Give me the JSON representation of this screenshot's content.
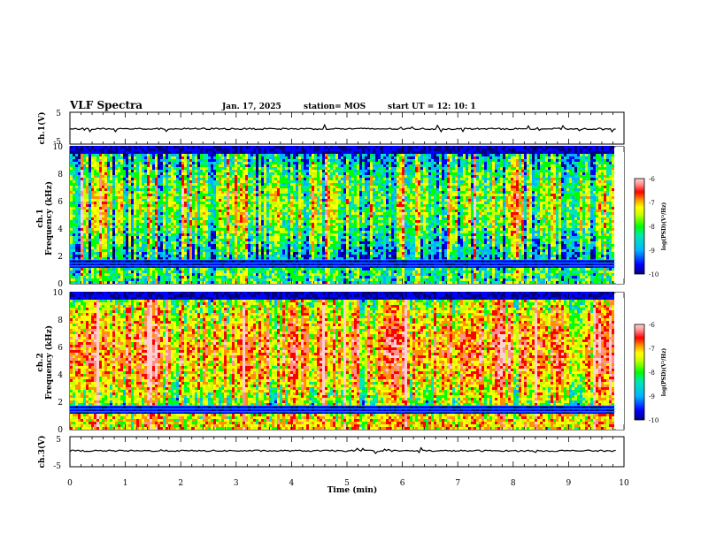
{
  "header": {
    "title": "VLF Spectra",
    "date": "Jan. 17, 2025",
    "station": "station= MOS",
    "start_ut": "start  UT =   12: 10: 1"
  },
  "chart_data": [
    {
      "type": "line",
      "name": "ch.1 waveform",
      "ylabel": "ch.1(V)",
      "ylim": [
        -5,
        5
      ],
      "yticks": [
        "5",
        "-5"
      ],
      "xlim": [
        0,
        10
      ],
      "trace_level": -0.2
    },
    {
      "type": "heatmap",
      "name": "ch.1 spectrogram",
      "ylabel": "ch.1\nFrequency (kHz)",
      "ylabel_lines": [
        "ch.1",
        "Frequency (kHz)"
      ],
      "yticks": [
        "0",
        "2",
        "4",
        "6",
        "8",
        "10"
      ],
      "ylim": [
        0,
        10
      ],
      "xlim": [
        0,
        9.85
      ],
      "colorbar": {
        "label": "log(PSD)(V²/Hz)",
        "range": [
          -10,
          -6
        ],
        "ticks": [
          "-6",
          "-7",
          "-8",
          "-9",
          "-10"
        ]
      },
      "colormap": [
        "#000080",
        "#0000ff",
        "#00b4ff",
        "#00e6b4",
        "#00ff00",
        "#c8ff00",
        "#ffff00",
        "#ff9000",
        "#ff0000",
        "#ff9090",
        "#ffd0d0"
      ],
      "bands": {
        "low_activity_kHz": [
          0,
          1.8
        ],
        "gap_kHz": [
          1.2,
          1.8
        ],
        "main_band_kHz": [
          2,
          9.5
        ],
        "mean_level": -8.3
      }
    },
    {
      "type": "heatmap",
      "name": "ch.2 spectrogram",
      "ylabel": "ch.2\nFrequency (kHz)",
      "ylabel_lines": [
        "ch.2",
        "Frequency (kHz)"
      ],
      "yticks": [
        "0",
        "2",
        "4",
        "6",
        "8",
        "10"
      ],
      "ylim": [
        0,
        10
      ],
      "xlim": [
        0,
        9.85
      ],
      "colorbar": {
        "label": "log(PSD)(V²/Hz)",
        "range": [
          -10,
          -6
        ],
        "ticks": [
          "-6",
          "-7",
          "-8",
          "-9",
          "-10"
        ]
      },
      "colormap": [
        "#000080",
        "#0000ff",
        "#00b4ff",
        "#00e6b4",
        "#00ff00",
        "#c8ff00",
        "#ffff00",
        "#ff9000",
        "#ff0000",
        "#ff9090",
        "#ffd0d0"
      ],
      "bands": {
        "low_activity_kHz": [
          0,
          1.8
        ],
        "gap_kHz": [
          1.2,
          1.8
        ],
        "main_band_kHz": [
          2,
          9.5
        ],
        "mean_level": -7.3
      }
    },
    {
      "type": "line",
      "name": "ch.3 waveform",
      "ylabel": "ch.3(V)",
      "ylim": [
        -5,
        5
      ],
      "yticks": [
        "5",
        "-5"
      ],
      "xlim": [
        0,
        10
      ],
      "trace_level": 0.3
    }
  ],
  "x_axis": {
    "label": "Time (min)",
    "range": [
      0,
      10
    ],
    "ticks": [
      "0",
      "1",
      "2",
      "3",
      "4",
      "5",
      "6",
      "7",
      "8",
      "9",
      "10"
    ]
  }
}
